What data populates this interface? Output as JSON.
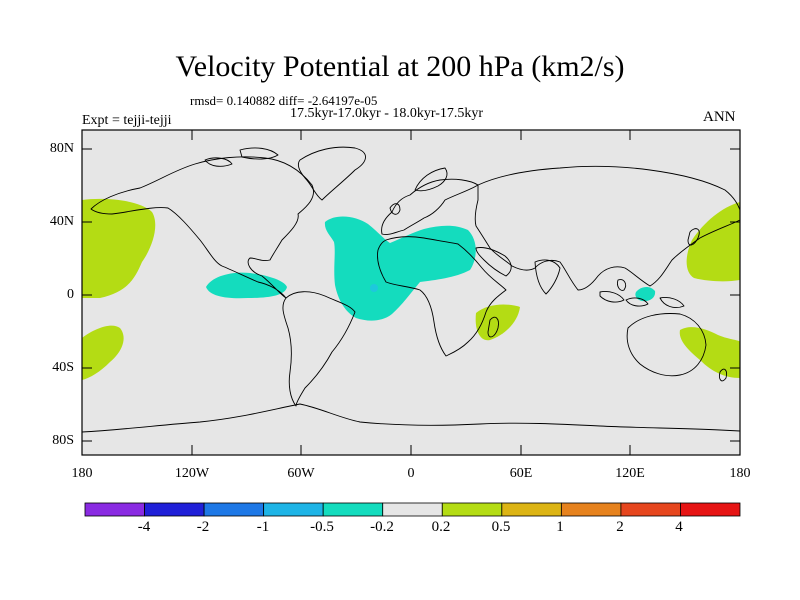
{
  "title": "Velocity Potential at 200 hPa (km2/s)",
  "stats_line": "rmsd= 0.140882 diff= -2.64197e-05",
  "period_line": "17.5kyr-17.0kyr - 18.0kyr-17.5kyr",
  "expt_label": "Expt = tejji-tejji",
  "season_label": "ANN",
  "lat_labels": [
    "80N",
    "40N",
    "0",
    "40S",
    "80S"
  ],
  "lon_labels": [
    "180",
    "120W",
    "60W",
    "0",
    "60E",
    "120E",
    "180"
  ],
  "colorbar": {
    "colors": [
      "#8a2be2",
      "#2020d8",
      "#1e78e6",
      "#1eb4e6",
      "#14dcbe",
      "#e6e6e6",
      "#b4dc14",
      "#dcb414",
      "#e6821e",
      "#e6461e",
      "#e61414"
    ],
    "labels": [
      "-4",
      "-2",
      "-1",
      "-0.5",
      "-0.2",
      "0.2",
      "0.5",
      "1",
      "2",
      "4"
    ]
  },
  "colors": {
    "background": "#e6e6e6",
    "negative_fill": "#14dcbe",
    "positive_fill": "#b4dc14",
    "negative_core": "#1ec8dc",
    "coast": "#000000"
  }
}
